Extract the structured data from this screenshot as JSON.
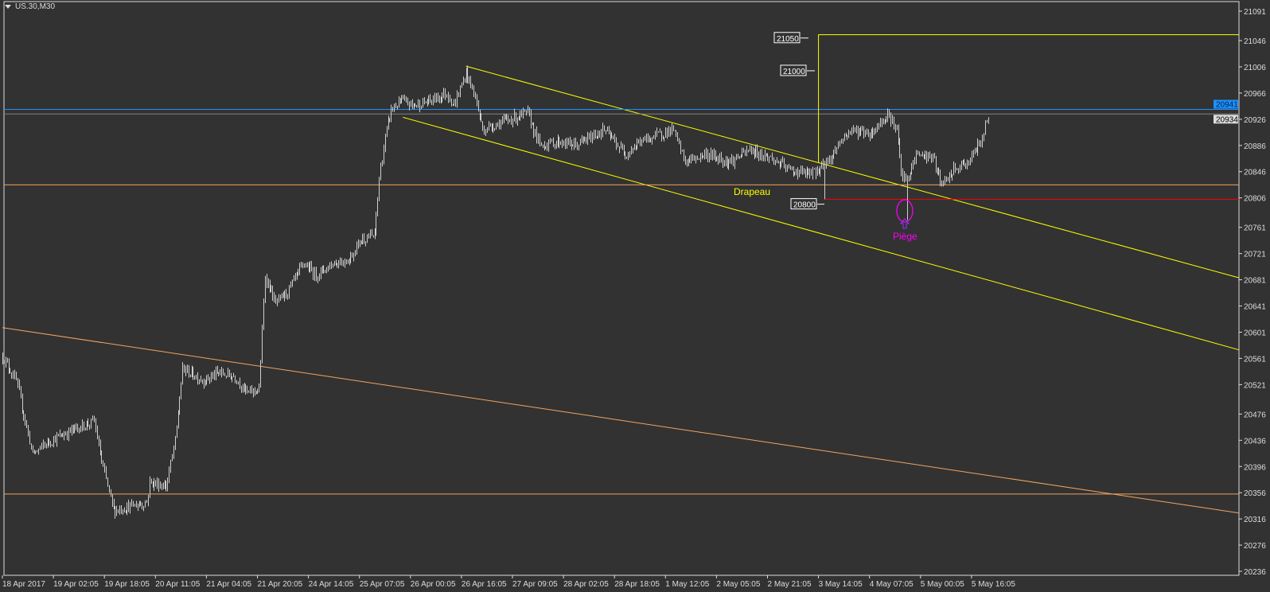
{
  "window": {
    "symbol_title": "US.30,M30"
  },
  "colors": {
    "background": "#323232",
    "bars": "#cfcfcf",
    "channel": "#ffff00",
    "trend": "#f4a460",
    "support": "#f4a460",
    "red_level": "#ff0000",
    "bid_line": "#1e90ff",
    "ask_line": "#808080",
    "trap": "#ff00ff",
    "axis": "#dcdcdc"
  },
  "chart_data": {
    "type": "bar",
    "title": "US.30,M30",
    "timeframe": "M30",
    "y_ticks": [
      21091,
      21046,
      21006,
      20966,
      20926,
      20886,
      20846,
      20806,
      20761,
      20721,
      20681,
      20641,
      20601,
      20561,
      20521,
      20476,
      20436,
      20396,
      20356,
      20316,
      20276,
      20236
    ],
    "ylim": [
      20236,
      21091
    ],
    "x_ticks": [
      "18 Apr 2017",
      "19 Apr 02:05",
      "19 Apr 18:05",
      "20 Apr 11:05",
      "21 Apr 04:05",
      "21 Apr 20:05",
      "24 Apr 14:05",
      "25 Apr 07:05",
      "26 Apr 00:05",
      "26 Apr 16:05",
      "27 Apr 09:05",
      "28 Apr 02:05",
      "28 Apr 18:05",
      "1 May 12:05",
      "2 May 05:05",
      "2 May 21:05",
      "3 May 14:05",
      "4 May 07:05",
      "5 May 00:05",
      "5 May 16:05"
    ],
    "bars_per_x_tick": 34,
    "close_path": [
      [
        0,
        20564
      ],
      [
        9,
        20527
      ],
      [
        20,
        20415
      ],
      [
        31,
        20434
      ],
      [
        47,
        20452
      ],
      [
        61,
        20465
      ],
      [
        66,
        20403
      ],
      [
        74,
        20329
      ],
      [
        96,
        20341
      ],
      [
        98,
        20372
      ],
      [
        109,
        20366
      ],
      [
        115,
        20434
      ],
      [
        120,
        20545
      ],
      [
        134,
        20527
      ],
      [
        144,
        20539
      ],
      [
        155,
        20533
      ],
      [
        163,
        20508
      ],
      [
        171,
        20514
      ],
      [
        175,
        20688
      ],
      [
        182,
        20644
      ],
      [
        190,
        20663
      ],
      [
        201,
        20706
      ],
      [
        209,
        20688
      ],
      [
        220,
        20706
      ],
      [
        231,
        20712
      ],
      [
        239,
        20743
      ],
      [
        248,
        20749
      ],
      [
        251,
        20836
      ],
      [
        255,
        20898
      ],
      [
        259,
        20941
      ],
      [
        266,
        20954
      ],
      [
        274,
        20947
      ],
      [
        285,
        20954
      ],
      [
        296,
        20966
      ],
      [
        301,
        20947
      ],
      [
        309,
        20997
      ],
      [
        315,
        20960
      ],
      [
        320,
        20910
      ],
      [
        334,
        20923
      ],
      [
        350,
        20935
      ],
      [
        358,
        20886
      ],
      [
        371,
        20892
      ],
      [
        382,
        20886
      ],
      [
        401,
        20910
      ],
      [
        415,
        20873
      ],
      [
        425,
        20892
      ],
      [
        447,
        20910
      ],
      [
        455,
        20861
      ],
      [
        469,
        20873
      ],
      [
        485,
        20861
      ],
      [
        498,
        20879
      ],
      [
        512,
        20867
      ],
      [
        525,
        20848
      ],
      [
        539,
        20842
      ],
      [
        547,
        20855
      ],
      [
        552,
        20867
      ],
      [
        558,
        20892
      ],
      [
        566,
        20910
      ],
      [
        579,
        20904
      ],
      [
        590,
        20935
      ],
      [
        596,
        20910
      ],
      [
        599,
        20842
      ],
      [
        603,
        20830
      ],
      [
        609,
        20873
      ],
      [
        620,
        20867
      ],
      [
        626,
        20824
      ],
      [
        634,
        20848
      ],
      [
        644,
        20861
      ],
      [
        652,
        20892
      ],
      [
        657,
        20932
      ]
    ],
    "notable_lows": [
      [
        548,
        20804
      ],
      [
        603,
        20772
      ]
    ],
    "lines": [
      {
        "kind": "trendline",
        "color": "channel",
        "from": [
          309,
          21007
        ],
        "to": [
          825,
          20684
        ]
      },
      {
        "kind": "trendline",
        "color": "channel",
        "from": [
          267,
          20929
        ],
        "to": [
          825,
          20574
        ]
      },
      {
        "kind": "trendline",
        "color": "trend",
        "from": [
          0,
          20608
        ],
        "to": [
          825,
          20325
        ]
      },
      {
        "kind": "horizontal",
        "color": "support",
        "price": 20826
      },
      {
        "kind": "horizontal",
        "color": "support",
        "price": 20354
      },
      {
        "kind": "horizontal",
        "color": "bid_line",
        "price": 20941
      },
      {
        "kind": "horizontal",
        "color": "ask_line",
        "price": 20934
      },
      {
        "kind": "horizontal_from",
        "color": "red_level",
        "price": 20804,
        "from_bar": 548
      },
      {
        "kind": "step",
        "color": "channel",
        "bar": 544,
        "from_price": 20859,
        "to_price": 21055
      }
    ],
    "price_labels": [
      {
        "text": "21050",
        "price": 21050
      },
      {
        "text": "21000",
        "price": 21000
      },
      {
        "text": "20800",
        "price": 20800
      }
    ],
    "bid_label": "20941",
    "ask_label": "20934",
    "annotations": [
      {
        "text": "Drapeau",
        "color": "channel"
      },
      {
        "text": "Piège",
        "color": "trap"
      }
    ]
  }
}
